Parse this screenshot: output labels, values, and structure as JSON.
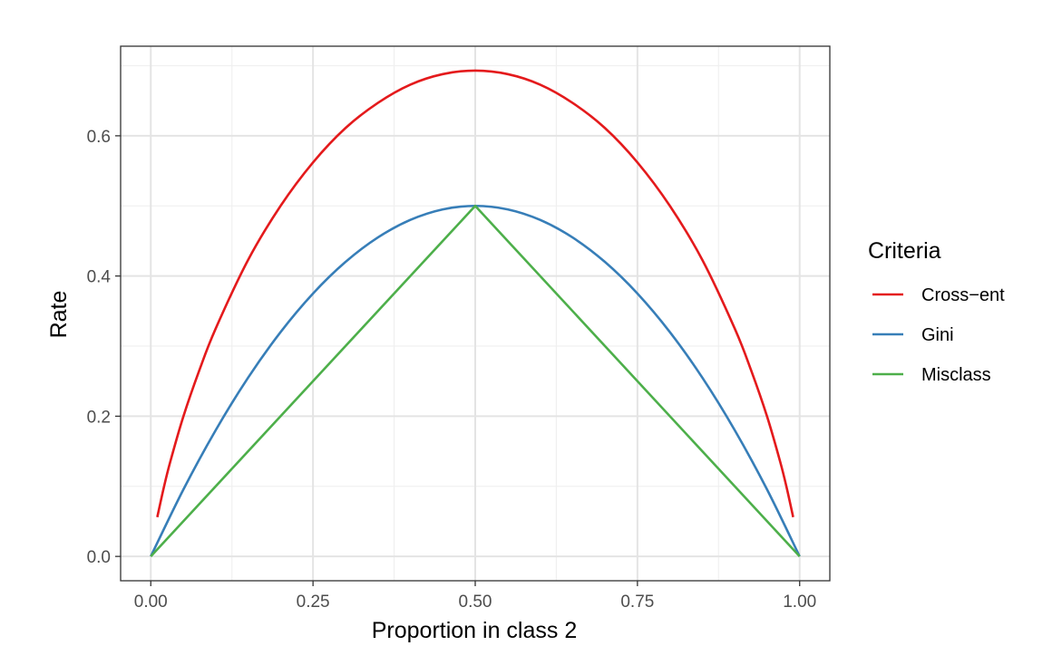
{
  "chart_data": {
    "type": "line",
    "title": "",
    "xlabel": "Proportion in class 2",
    "ylabel": "Rate",
    "xlim": [
      -0.0465,
      1.0465
    ],
    "ylim": [
      -0.0347,
      0.7278
    ],
    "x_ticks": [
      0.0,
      0.25,
      0.5,
      0.75,
      1.0
    ],
    "x_tick_labels": [
      "0.00",
      "0.25",
      "0.50",
      "0.75",
      "1.00"
    ],
    "y_ticks": [
      0.0,
      0.2,
      0.4,
      0.6
    ],
    "y_tick_labels": [
      "0.0",
      "0.2",
      "0.4",
      "0.6"
    ],
    "grid": true,
    "legend": {
      "title": "Criteria",
      "position": "right"
    },
    "series": [
      {
        "name": "Cross−ent",
        "color": "#E41A1C",
        "x": [
          0.01,
          0.02,
          0.03,
          0.05,
          0.075,
          0.1,
          0.15,
          0.2,
          0.25,
          0.3,
          0.35,
          0.4,
          0.45,
          0.5,
          0.55,
          0.6,
          0.65,
          0.7,
          0.75,
          0.8,
          0.85,
          0.9,
          0.925,
          0.95,
          0.97,
          0.98,
          0.99
        ],
        "y": [
          0.056,
          0.098,
          0.135,
          0.199,
          0.266,
          0.325,
          0.423,
          0.5,
          0.562,
          0.611,
          0.647,
          0.673,
          0.688,
          0.693,
          0.688,
          0.673,
          0.647,
          0.611,
          0.562,
          0.5,
          0.423,
          0.325,
          0.266,
          0.199,
          0.135,
          0.098,
          0.056
        ]
      },
      {
        "name": "Gini",
        "color": "#377EB8",
        "x": [
          0.0,
          0.05,
          0.1,
          0.15,
          0.2,
          0.25,
          0.3,
          0.35,
          0.4,
          0.45,
          0.5,
          0.55,
          0.6,
          0.65,
          0.7,
          0.75,
          0.8,
          0.85,
          0.9,
          0.95,
          1.0
        ],
        "y": [
          0.0,
          0.095,
          0.18,
          0.255,
          0.32,
          0.375,
          0.42,
          0.455,
          0.48,
          0.495,
          0.5,
          0.495,
          0.48,
          0.455,
          0.42,
          0.375,
          0.32,
          0.255,
          0.18,
          0.095,
          0.0
        ]
      },
      {
        "name": "Misclass",
        "color": "#4DAF4A",
        "x": [
          0.0,
          0.5,
          1.0
        ],
        "y": [
          0.0,
          0.5,
          0.0
        ]
      }
    ]
  }
}
